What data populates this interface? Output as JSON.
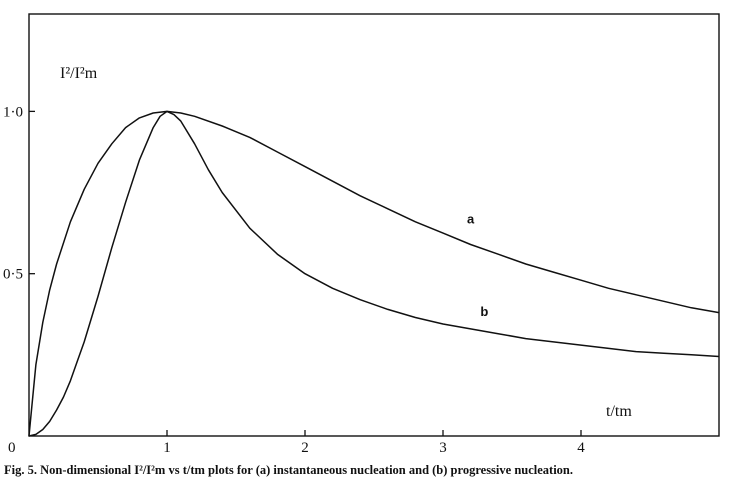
{
  "chart_data": {
    "type": "line",
    "ylabel": "I²/I²m",
    "xlabel": "t/tm",
    "xlim": [
      0,
      5
    ],
    "ylim": [
      0,
      1.3
    ],
    "x_ticks": [
      {
        "value": 0,
        "label": "0"
      },
      {
        "value": 1,
        "label": "1"
      },
      {
        "value": 2,
        "label": "2"
      },
      {
        "value": 3,
        "label": "3"
      },
      {
        "value": 4,
        "label": "4"
      }
    ],
    "y_ticks": [
      {
        "value": 0.5,
        "label": "0·5"
      },
      {
        "value": 1.0,
        "label": "1·0"
      }
    ],
    "grid": false,
    "series": [
      {
        "name": "a",
        "x": [
          0,
          0.02,
          0.05,
          0.1,
          0.15,
          0.2,
          0.3,
          0.4,
          0.5,
          0.6,
          0.7,
          0.8,
          0.9,
          1.0,
          1.1,
          1.2,
          1.4,
          1.6,
          1.8,
          2.0,
          2.2,
          2.4,
          2.6,
          2.8,
          3.0,
          3.2,
          3.4,
          3.6,
          3.8,
          4.0,
          4.2,
          4.4,
          4.6,
          4.8,
          5.0
        ],
        "y": [
          0,
          0.09,
          0.22,
          0.35,
          0.45,
          0.53,
          0.66,
          0.76,
          0.84,
          0.9,
          0.95,
          0.98,
          0.995,
          1.0,
          0.995,
          0.985,
          0.955,
          0.92,
          0.875,
          0.83,
          0.785,
          0.74,
          0.7,
          0.66,
          0.625,
          0.59,
          0.56,
          0.53,
          0.505,
          0.48,
          0.455,
          0.435,
          0.415,
          0.395,
          0.38
        ]
      },
      {
        "name": "b",
        "x": [
          0,
          0.05,
          0.1,
          0.15,
          0.2,
          0.25,
          0.3,
          0.35,
          0.4,
          0.5,
          0.6,
          0.7,
          0.8,
          0.9,
          0.95,
          1.0,
          1.05,
          1.1,
          1.2,
          1.3,
          1.4,
          1.6,
          1.8,
          2.0,
          2.2,
          2.4,
          2.6,
          2.8,
          3.0,
          3.2,
          3.4,
          3.6,
          3.8,
          4.0,
          4.2,
          4.4,
          4.6,
          4.8,
          5.0
        ],
        "y": [
          0,
          0.005,
          0.02,
          0.045,
          0.08,
          0.12,
          0.17,
          0.23,
          0.29,
          0.43,
          0.58,
          0.72,
          0.85,
          0.95,
          0.985,
          1.0,
          0.99,
          0.97,
          0.9,
          0.82,
          0.75,
          0.64,
          0.56,
          0.5,
          0.455,
          0.42,
          0.39,
          0.365,
          0.345,
          0.33,
          0.315,
          0.3,
          0.29,
          0.28,
          0.27,
          0.26,
          0.255,
          0.25,
          0.245
        ]
      }
    ],
    "series_label_points": [
      {
        "name": "a",
        "x": 3.2,
        "y": 0.655
      },
      {
        "name": "b",
        "x": 3.3,
        "y": 0.37
      }
    ]
  },
  "caption": "Fig. 5. Non-dimensional I²/I²m vs t/tm plots for (a) instantaneous nucleation and (b) progressive nucleation."
}
